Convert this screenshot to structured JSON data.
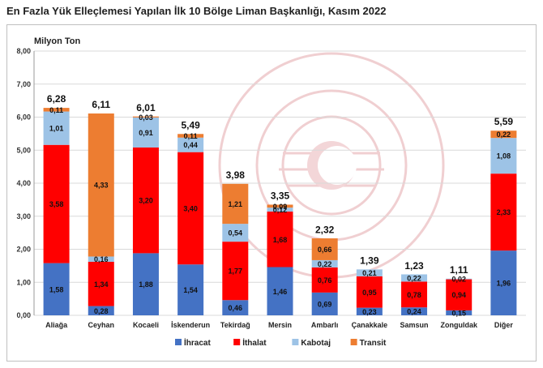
{
  "title": "En Fazla Yük Elleçlemesi Yapılan İlk 10 Bölge Liman Başkanlığı, Kasım 2022",
  "watermark": {
    "text": "T.C. ULAŞTIRMA VE ALTYAPI BAKANLIĞI",
    "color": "#e7b5b8"
  },
  "chart_data": {
    "type": "bar",
    "stacked": true,
    "title": "En Fazla Yük Elleçlemesi Yapılan İlk 10 Bölge Liman Başkanlığı, Kasım 2022",
    "ylabel": "Milyon Ton",
    "xlabel": "",
    "ylim": [
      0,
      8
    ],
    "yticks": [
      "0,00",
      "1,00",
      "2,00",
      "3,00",
      "4,00",
      "5,00",
      "6,00",
      "7,00",
      "8,00"
    ],
    "grid": true,
    "legend_position": "bottom",
    "categories": [
      "Aliağa",
      "Ceyhan",
      "Kocaeli",
      "İskenderun",
      "Tekirdağ",
      "Mersin",
      "Ambarlı",
      "Çanakkale",
      "Samsun",
      "Zonguldak",
      "Diğer"
    ],
    "totals": [
      6.28,
      6.11,
      6.01,
      5.49,
      3.98,
      3.35,
      2.32,
      1.39,
      1.23,
      1.11,
      5.59
    ],
    "total_labels": [
      "6,28",
      "6,11",
      "6,01",
      "5,49",
      "3,98",
      "3,35",
      "2,32",
      "1,39",
      "1,23",
      "1,11",
      "5,59"
    ],
    "series": [
      {
        "name": "İhracat",
        "color": "#4472c4",
        "values": [
          1.58,
          0.28,
          1.88,
          1.54,
          0.46,
          1.46,
          0.69,
          0.23,
          0.24,
          0.15,
          1.96
        ],
        "labels": [
          "1,58",
          "0,28",
          "1,88",
          "1,54",
          "0,46",
          "1,46",
          "0,69",
          "0,23",
          "0,24",
          "0,15",
          "1,96"
        ]
      },
      {
        "name": "İthalat",
        "color": "#ff0000",
        "values": [
          3.58,
          1.34,
          3.2,
          3.4,
          1.77,
          1.68,
          0.76,
          0.95,
          0.78,
          0.94,
          2.33
        ],
        "labels": [
          "3,58",
          "1,34",
          "3,20",
          "3,40",
          "1,77",
          "1,68",
          "0,76",
          "0,95",
          "0,78",
          "0,94",
          "2,33"
        ]
      },
      {
        "name": "Kabotaj",
        "color": "#9dc3e6",
        "values": [
          1.01,
          0.16,
          0.91,
          0.44,
          0.54,
          0.12,
          0.22,
          0.21,
          0.22,
          0.02,
          1.08
        ],
        "labels": [
          "1,01",
          "0,16",
          "0,91",
          "0,44",
          "0,54",
          "0,12",
          "0,22",
          "0,21",
          "0,22",
          "0,02",
          "1,08"
        ]
      },
      {
        "name": "Transit",
        "color": "#ed7d31",
        "values": [
          0.11,
          4.33,
          0.03,
          0.11,
          1.21,
          0.09,
          0.66,
          0,
          0,
          0,
          0.22
        ],
        "labels": [
          "0,11",
          "4,33",
          "0,03",
          "0,11",
          "1,21",
          "0,09",
          "0,66",
          "",
          "",
          "",
          "0,22"
        ]
      }
    ]
  }
}
